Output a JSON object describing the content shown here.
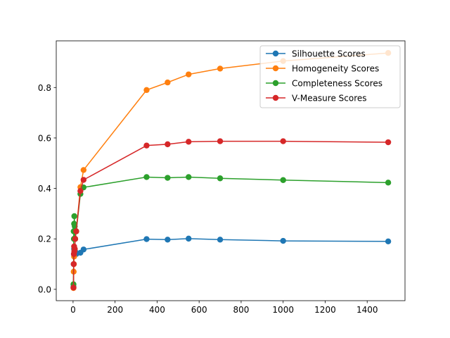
{
  "chart_data": {
    "type": "line",
    "title": "",
    "xlabel": "",
    "ylabel": "",
    "xlim": [
      -80,
      1580
    ],
    "ylim": [
      -0.045,
      0.985
    ],
    "xticks": [
      0,
      200,
      400,
      600,
      800,
      1000,
      1200,
      1400
    ],
    "yticks": [
      0.0,
      0.2,
      0.4,
      0.6,
      0.8
    ],
    "xtick_labels": [
      "0",
      "200",
      "400",
      "600",
      "800",
      "1000",
      "1200",
      "1400"
    ],
    "ytick_labels": [
      "0.0",
      "0.2",
      "0.4",
      "0.6",
      "0.8"
    ],
    "grid": false,
    "legend_position": "top-right",
    "x": [
      2,
      3,
      4,
      5,
      6,
      8,
      10,
      15,
      35,
      50,
      350,
      450,
      550,
      700,
      1000,
      1500
    ],
    "series": [
      {
        "name": "Silhouette Scores",
        "color": "#1f77b4",
        "values": [
          0.01,
          0.1,
          0.14,
          0.16,
          0.15,
          0.16,
          0.15,
          0.14,
          0.145,
          0.158,
          0.199,
          0.197,
          0.201,
          0.197,
          0.192,
          0.19
        ]
      },
      {
        "name": "Homogeneity Scores",
        "color": "#ff7f0e",
        "values": [
          0.005,
          0.07,
          0.1,
          0.13,
          0.15,
          0.16,
          0.2,
          0.23,
          0.405,
          0.473,
          0.79,
          0.82,
          0.852,
          0.875,
          0.905,
          0.937
        ]
      },
      {
        "name": "Completeness Scores",
        "color": "#2ca02c",
        "values": [
          0.02,
          0.23,
          0.2,
          0.26,
          0.29,
          0.25,
          0.2,
          0.23,
          0.378,
          0.404,
          0.445,
          0.442,
          0.445,
          0.44,
          0.433,
          0.423
        ]
      },
      {
        "name": "V-Measure Scores",
        "color": "#d62728",
        "values": [
          0.007,
          0.1,
          0.14,
          0.17,
          0.15,
          0.16,
          0.2,
          0.23,
          0.39,
          0.434,
          0.57,
          0.575,
          0.585,
          0.587,
          0.587,
          0.583
        ]
      }
    ]
  }
}
